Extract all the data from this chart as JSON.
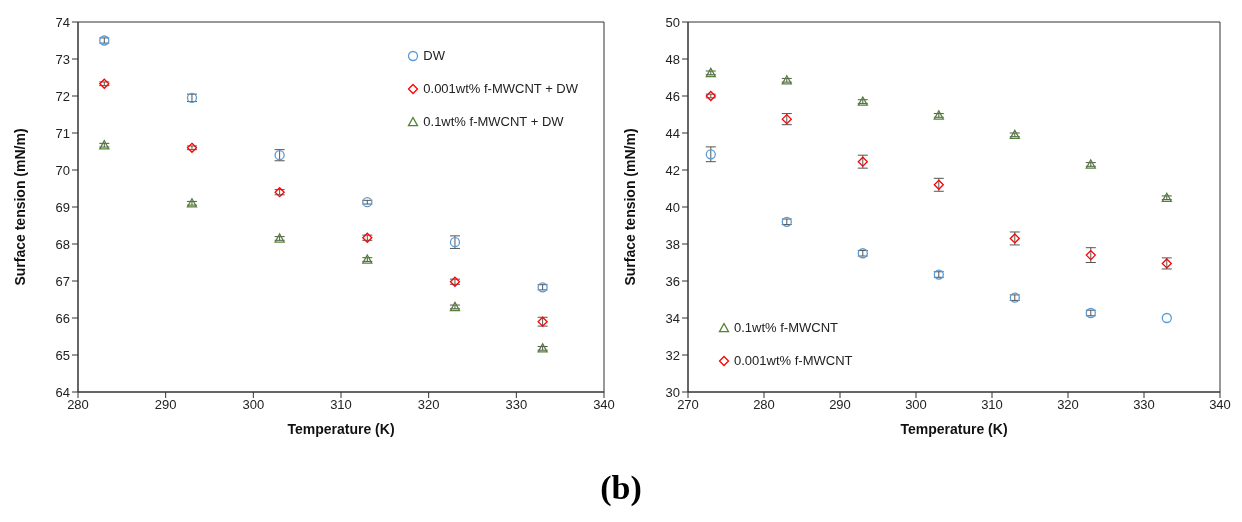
{
  "chart_data": [
    {
      "type": "scatter",
      "xlabel": "Temperature (K)",
      "ylabel": "Surface tension (mN/m)",
      "xlim": [
        280,
        340
      ],
      "xticks": [
        280,
        290,
        300,
        310,
        320,
        330,
        340
      ],
      "ylim": [
        64,
        74
      ],
      "yticks": [
        64,
        65,
        66,
        67,
        68,
        69,
        70,
        71,
        72,
        73,
        74
      ],
      "legend": "top right",
      "x": [
        283,
        293,
        303,
        313,
        323,
        333
      ],
      "series": [
        {
          "name": "DW",
          "color": "#5b9bd5",
          "marker": "circle",
          "values": [
            73.5,
            71.95,
            70.4,
            69.13,
            68.05,
            66.83
          ],
          "errors": [
            0.07,
            0.1,
            0.15,
            0.05,
            0.17,
            0.07
          ]
        },
        {
          "name": "0.001wt% f-MWCNT + DW",
          "color": "#ff0000",
          "marker": "diamond",
          "values": [
            72.33,
            70.6,
            69.4,
            68.17,
            66.98,
            65.9
          ],
          "errors": [
            0.05,
            0.05,
            0.07,
            0.07,
            0.07,
            0.12
          ]
        },
        {
          "name": "0.1wt% f-MWCNT + DW",
          "color": "#548235",
          "marker": "triangle",
          "values": [
            70.67,
            69.1,
            68.15,
            67.58,
            66.3,
            65.18
          ],
          "errors": [
            0.05,
            0.05,
            0.05,
            0.05,
            0.05,
            0.05
          ]
        }
      ]
    },
    {
      "type": "scatter",
      "xlabel": "Temperature (K)",
      "ylabel": "Surface tension (mN/m)",
      "xlim": [
        270,
        340
      ],
      "xticks": [
        270,
        280,
        290,
        300,
        310,
        320,
        330,
        340
      ],
      "ylim": [
        30,
        50
      ],
      "yticks": [
        30,
        32,
        34,
        36,
        38,
        40,
        42,
        44,
        46,
        48,
        50
      ],
      "legend": "bottom left",
      "x": [
        273,
        283,
        293,
        303,
        313,
        323,
        333
      ],
      "annotations": [
        "(b)"
      ],
      "series": [
        {
          "name": "0.1wt% f-MWCNT",
          "color": "#548235",
          "marker": "triangle",
          "values": [
            47.25,
            46.85,
            45.7,
            44.95,
            43.9,
            42.3,
            40.5
          ],
          "errors": [
            0.1,
            0.1,
            0.1,
            0.1,
            0.1,
            0.1,
            0.1
          ]
        },
        {
          "name": "0.001wt% f-MWCNT",
          "color": "#ff0000",
          "marker": "diamond",
          "values": [
            46.0,
            44.75,
            42.45,
            41.2,
            38.3,
            37.4,
            36.95
          ],
          "errors": [
            0.1,
            0.3,
            0.35,
            0.35,
            0.35,
            0.4,
            0.3
          ]
        },
        {
          "color": "#5b9bd5",
          "marker": "circle",
          "values": [
            42.85,
            39.2,
            37.5,
            36.35,
            35.1,
            34.27,
            34.0
          ],
          "errors": [
            0.4,
            0.15,
            0.15,
            0.15,
            0.15,
            0.15,
            null
          ]
        }
      ]
    }
  ]
}
